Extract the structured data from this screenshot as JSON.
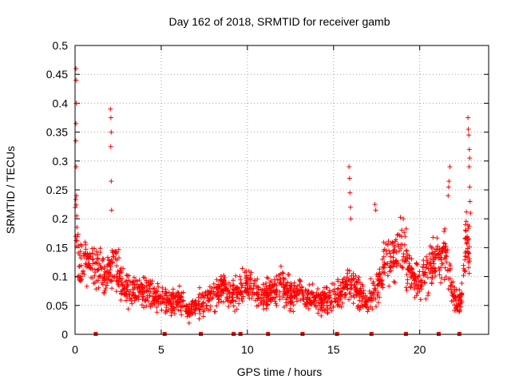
{
  "chart_data": {
    "type": "scatter",
    "title": "Day 162 of 2018, SRMTID for receiver gamb",
    "xlabel": "GPS time / hours",
    "ylabel": "SRMTID / TECUs",
    "xlim": [
      0,
      24
    ],
    "ylim": [
      0,
      0.5
    ],
    "x_ticks": [
      0,
      5,
      10,
      15,
      20
    ],
    "x_tick_labels": [
      "0",
      "5",
      "10",
      "15",
      "20"
    ],
    "y_ticks": [
      0,
      0.05,
      0.1,
      0.15,
      0.2,
      0.25,
      0.3,
      0.35,
      0.4,
      0.45,
      0.5
    ],
    "y_tick_labels": [
      "0",
      "0.05",
      "0.1",
      "0.15",
      "0.2",
      "0.25",
      "0.3",
      "0.35",
      "0.4",
      "0.45",
      "0.5"
    ],
    "grid": true,
    "series_color": "#ff0000",
    "marker": "+",
    "seed": 162,
    "envelope": [
      [
        0.0,
        0.2
      ],
      [
        0.15,
        0.16
      ],
      [
        0.3,
        0.12
      ],
      [
        0.6,
        0.13
      ],
      [
        0.9,
        0.13
      ],
      [
        1.3,
        0.12
      ],
      [
        1.7,
        0.1
      ],
      [
        2.1,
        0.11
      ],
      [
        2.4,
        0.12
      ],
      [
        2.7,
        0.08
      ],
      [
        3.2,
        0.07
      ],
      [
        3.8,
        0.075
      ],
      [
        4.5,
        0.07
      ],
      [
        5.0,
        0.06
      ],
      [
        5.6,
        0.06
      ],
      [
        6.2,
        0.055
      ],
      [
        6.6,
        0.035
      ],
      [
        7.0,
        0.05
      ],
      [
        7.5,
        0.06
      ],
      [
        8.0,
        0.065
      ],
      [
        8.6,
        0.08
      ],
      [
        9.0,
        0.065
      ],
      [
        9.5,
        0.075
      ],
      [
        10.0,
        0.09
      ],
      [
        10.5,
        0.07
      ],
      [
        11.0,
        0.065
      ],
      [
        11.5,
        0.08
      ],
      [
        12.0,
        0.085
      ],
      [
        12.5,
        0.07
      ],
      [
        13.0,
        0.075
      ],
      [
        13.5,
        0.06
      ],
      [
        14.0,
        0.055
      ],
      [
        14.5,
        0.06
      ],
      [
        15.0,
        0.065
      ],
      [
        15.5,
        0.075
      ],
      [
        16.0,
        0.09
      ],
      [
        16.5,
        0.07
      ],
      [
        17.0,
        0.06
      ],
      [
        17.5,
        0.08
      ],
      [
        18.0,
        0.12
      ],
      [
        18.5,
        0.13
      ],
      [
        19.0,
        0.16
      ],
      [
        19.3,
        0.12
      ],
      [
        19.7,
        0.09
      ],
      [
        20.1,
        0.09
      ],
      [
        20.5,
        0.11
      ],
      [
        21.0,
        0.13
      ],
      [
        21.5,
        0.14
      ],
      [
        21.8,
        0.09
      ],
      [
        22.1,
        0.05
      ],
      [
        22.4,
        0.06
      ],
      [
        22.7,
        0.16
      ],
      [
        22.9,
        0.14
      ]
    ],
    "spikes": [
      [
        0.05,
        0.46
      ],
      [
        0.06,
        0.44
      ],
      [
        0.07,
        0.4
      ],
      [
        0.05,
        0.365
      ],
      [
        0.04,
        0.335
      ],
      [
        0.06,
        0.29
      ],
      [
        0.08,
        0.24
      ],
      [
        0.1,
        0.205
      ],
      [
        2.05,
        0.39
      ],
      [
        2.08,
        0.375
      ],
      [
        2.1,
        0.35
      ],
      [
        2.07,
        0.325
      ],
      [
        2.1,
        0.265
      ],
      [
        2.12,
        0.215
      ],
      [
        15.9,
        0.29
      ],
      [
        15.93,
        0.27
      ],
      [
        15.95,
        0.245
      ],
      [
        15.98,
        0.22
      ],
      [
        16.0,
        0.2
      ],
      [
        17.4,
        0.225
      ],
      [
        17.45,
        0.215
      ],
      [
        19.05,
        0.2
      ],
      [
        21.75,
        0.29
      ],
      [
        21.7,
        0.265
      ],
      [
        21.68,
        0.255
      ],
      [
        21.65,
        0.24
      ],
      [
        22.8,
        0.375
      ],
      [
        22.82,
        0.355
      ],
      [
        22.85,
        0.345
      ],
      [
        22.88,
        0.32
      ],
      [
        22.9,
        0.305
      ],
      [
        22.87,
        0.29
      ],
      [
        22.9,
        0.255
      ],
      [
        22.92,
        0.23
      ],
      [
        22.95,
        0.21
      ],
      [
        22.85,
        0.165
      ]
    ],
    "zero_markers": [
      1.2,
      5.2,
      7.3,
      9.2,
      9.6,
      11.2,
      13.2,
      15.2,
      17.2,
      19.2,
      21.1,
      22.3
    ]
  }
}
